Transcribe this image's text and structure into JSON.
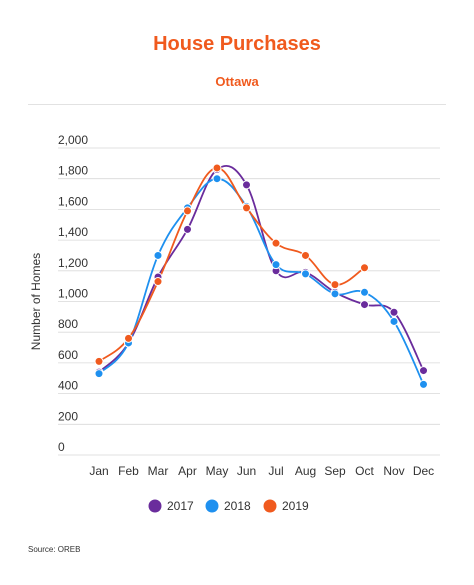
{
  "chart_data": {
    "type": "line",
    "title": "House Purchases",
    "subtitle": "Ottawa",
    "ylabel": "Number of Homes",
    "xlabel": "",
    "categories": [
      "Jan",
      "Feb",
      "Mar",
      "Apr",
      "May",
      "Jun",
      "Jul",
      "Aug",
      "Sep",
      "Oct",
      "Nov",
      "Dec"
    ],
    "ylim": [
      0,
      2000
    ],
    "yticks": [
      "0",
      "200",
      "400",
      "600",
      "800",
      "1,000",
      "1,200",
      "1,400",
      "1,600",
      "1,800",
      "2,000"
    ],
    "grid": true,
    "legend_position": "bottom",
    "series": [
      {
        "name": "2017",
        "color": "#6a2c9c",
        "values": [
          540,
          730,
          1160,
          1470,
          1860,
          1760,
          1200,
          1190,
          1060,
          980,
          930,
          550
        ]
      },
      {
        "name": "2018",
        "color": "#1e90ef",
        "values": [
          530,
          730,
          1300,
          1610,
          1800,
          1620,
          1240,
          1180,
          1050,
          1060,
          870,
          460
        ]
      },
      {
        "name": "2019",
        "color": "#f05a1e",
        "values": [
          610,
          760,
          1130,
          1590,
          1870,
          1610,
          1380,
          1300,
          1110,
          1220,
          null,
          null
        ]
      }
    ],
    "source": "Source: OREB"
  }
}
